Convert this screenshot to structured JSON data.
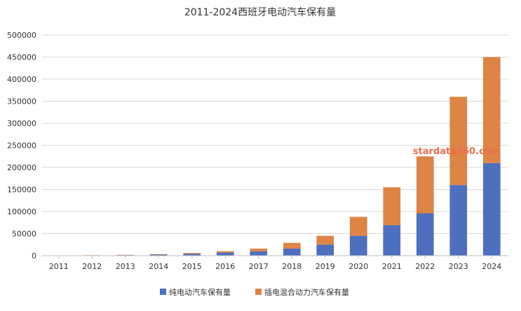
{
  "chart_data": {
    "type": "bar",
    "stacked": true,
    "title": "2011-2024西班牙电动汽车保有量",
    "categories": [
      "2011",
      "2012",
      "2013",
      "2014",
      "2015",
      "2016",
      "2017",
      "2018",
      "2019",
      "2020",
      "2021",
      "2022",
      "2023",
      "2024"
    ],
    "series": [
      {
        "name": "纯电动汽车保有量",
        "color": "#4e6fbe",
        "values": [
          500,
          800,
          1300,
          2500,
          4000,
          7000,
          10000,
          16000,
          25000,
          45000,
          69000,
          96000,
          160000,
          210000
        ]
      },
      {
        "name": "插电混合动力汽车保有量",
        "color": "#dd8446",
        "values": [
          200,
          400,
          700,
          1000,
          2000,
          3000,
          6000,
          13000,
          20000,
          43000,
          86000,
          129000,
          200000,
          240000
        ]
      }
    ],
    "ylim": [
      0,
      500000
    ],
    "yticks": [
      0,
      50000,
      100000,
      150000,
      200000,
      250000,
      300000,
      350000,
      400000,
      450000,
      500000
    ],
    "grid": true,
    "legend_position": "bottom",
    "xlabel": "",
    "ylabel": ""
  },
  "watermark": "stardata360.com",
  "watermark_color": "#e8704a",
  "grid_color": "#d9d9d9",
  "axis_color": "#bfbfbf",
  "text_color": "#333333"
}
